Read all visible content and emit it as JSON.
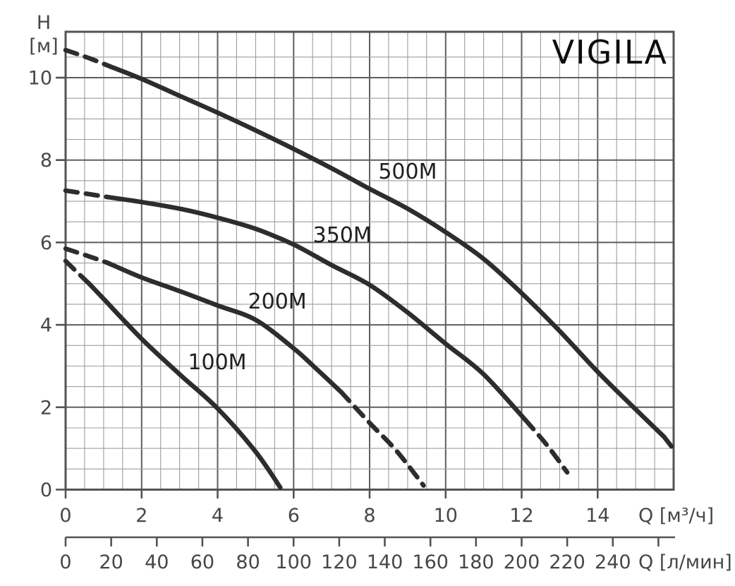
{
  "title": "VIGILA",
  "y_axis": {
    "name": "H",
    "unit": "[м]",
    "tick_labels": [
      "0",
      "2",
      "4",
      "6",
      "8",
      "10"
    ]
  },
  "x_axis_m3h": {
    "unit_label": "Q [м³/ч]",
    "tick_labels": [
      "0",
      "2",
      "4",
      "6",
      "8",
      "10",
      "12",
      "14"
    ]
  },
  "x_axis_lmin": {
    "unit_label": "Q [л/мин]",
    "tick_labels": [
      "0",
      "20",
      "40",
      "60",
      "80",
      "100",
      "120",
      "140",
      "160",
      "180",
      "200",
      "220",
      "240"
    ]
  },
  "chart_data": {
    "type": "line",
    "title": "VIGILA",
    "xlabel": "Q [м³/ч] (upper scale) / Q [л/мин] (lower scale)",
    "ylabel": "H [м]",
    "xlim": [
      0,
      16
    ],
    "ylim": [
      0,
      11.1
    ],
    "grid": "minor every 0.5, major every 2",
    "legend_position": "labels on curves",
    "lmin_per_m3h": 16.667,
    "curve_color": "#2d2d2f",
    "series": [
      {
        "name": "500M",
        "label_at": {
          "q": 9.0,
          "h": 7.72
        },
        "segments": [
          {
            "style": "dashed",
            "points": [
              [
                0,
                10.67
              ],
              [
                0.6,
                10.48
              ],
              [
                1.15,
                10.28
              ]
            ]
          },
          {
            "style": "solid",
            "points": [
              [
                1.15,
                10.28
              ],
              [
                2,
                9.97
              ],
              [
                3,
                9.56
              ],
              [
                4,
                9.15
              ],
              [
                5,
                8.72
              ],
              [
                6,
                8.27
              ],
              [
                7,
                7.8
              ],
              [
                8,
                7.3
              ],
              [
                9,
                6.82
              ],
              [
                10,
                6.25
              ],
              [
                11,
                5.6
              ],
              [
                12,
                4.77
              ],
              [
                13,
                3.85
              ],
              [
                14,
                2.86
              ],
              [
                15,
                1.95
              ],
              [
                15.75,
                1.28
              ]
            ]
          },
          {
            "style": "dashed",
            "points": [
              [
                15.75,
                1.28
              ],
              [
                16,
                0.98
              ]
            ]
          }
        ]
      },
      {
        "name": "350M",
        "label_at": {
          "q": 7.28,
          "h": 6.18
        },
        "segments": [
          {
            "style": "dashed",
            "points": [
              [
                0,
                7.26
              ],
              [
                0.56,
                7.18
              ],
              [
                1.12,
                7.1
              ]
            ]
          },
          {
            "style": "solid",
            "points": [
              [
                1.12,
                7.1
              ],
              [
                2,
                6.98
              ],
              [
                3,
                6.82
              ],
              [
                4,
                6.6
              ],
              [
                5,
                6.33
              ],
              [
                6,
                5.95
              ],
              [
                7,
                5.45
              ],
              [
                8,
                4.97
              ],
              [
                9,
                4.3
              ],
              [
                10,
                3.54
              ],
              [
                11,
                2.8
              ],
              [
                12.1,
                1.69
              ]
            ]
          },
          {
            "style": "dashed",
            "points": [
              [
                12.1,
                1.69
              ],
              [
                12.65,
                1.1
              ],
              [
                13.2,
                0.42
              ]
            ]
          }
        ]
      },
      {
        "name": "200M",
        "label_at": {
          "q": 5.57,
          "h": 4.57
        },
        "segments": [
          {
            "style": "dashed",
            "points": [
              [
                0,
                5.85
              ],
              [
                0.56,
                5.68
              ],
              [
                1.12,
                5.5
              ]
            ]
          },
          {
            "style": "solid",
            "points": [
              [
                1.12,
                5.5
              ],
              [
                2,
                5.15
              ],
              [
                3,
                4.82
              ],
              [
                4,
                4.47
              ],
              [
                5,
                4.12
              ],
              [
                6,
                3.43
              ],
              [
                6.6,
                2.93
              ],
              [
                7.25,
                2.37
              ]
            ]
          },
          {
            "style": "dashed",
            "points": [
              [
                7.25,
                2.37
              ],
              [
                8,
                1.62
              ],
              [
                8.7,
                0.95
              ],
              [
                9.42,
                0.1
              ]
            ]
          }
        ]
      },
      {
        "name": "100M",
        "label_at": {
          "q": 3.99,
          "h": 3.09
        },
        "segments": [
          {
            "style": "dashed",
            "points": [
              [
                0,
                5.55
              ],
              [
                0.3,
                5.28
              ],
              [
                0.62,
                5.0
              ]
            ]
          },
          {
            "style": "solid",
            "points": [
              [
                0.62,
                5.0
              ],
              [
                1,
                4.63
              ],
              [
                2,
                3.66
              ],
              [
                3,
                2.8
              ],
              [
                4,
                1.97
              ],
              [
                5,
                0.92
              ],
              [
                5.65,
                0.05
              ]
            ]
          }
        ]
      }
    ]
  }
}
